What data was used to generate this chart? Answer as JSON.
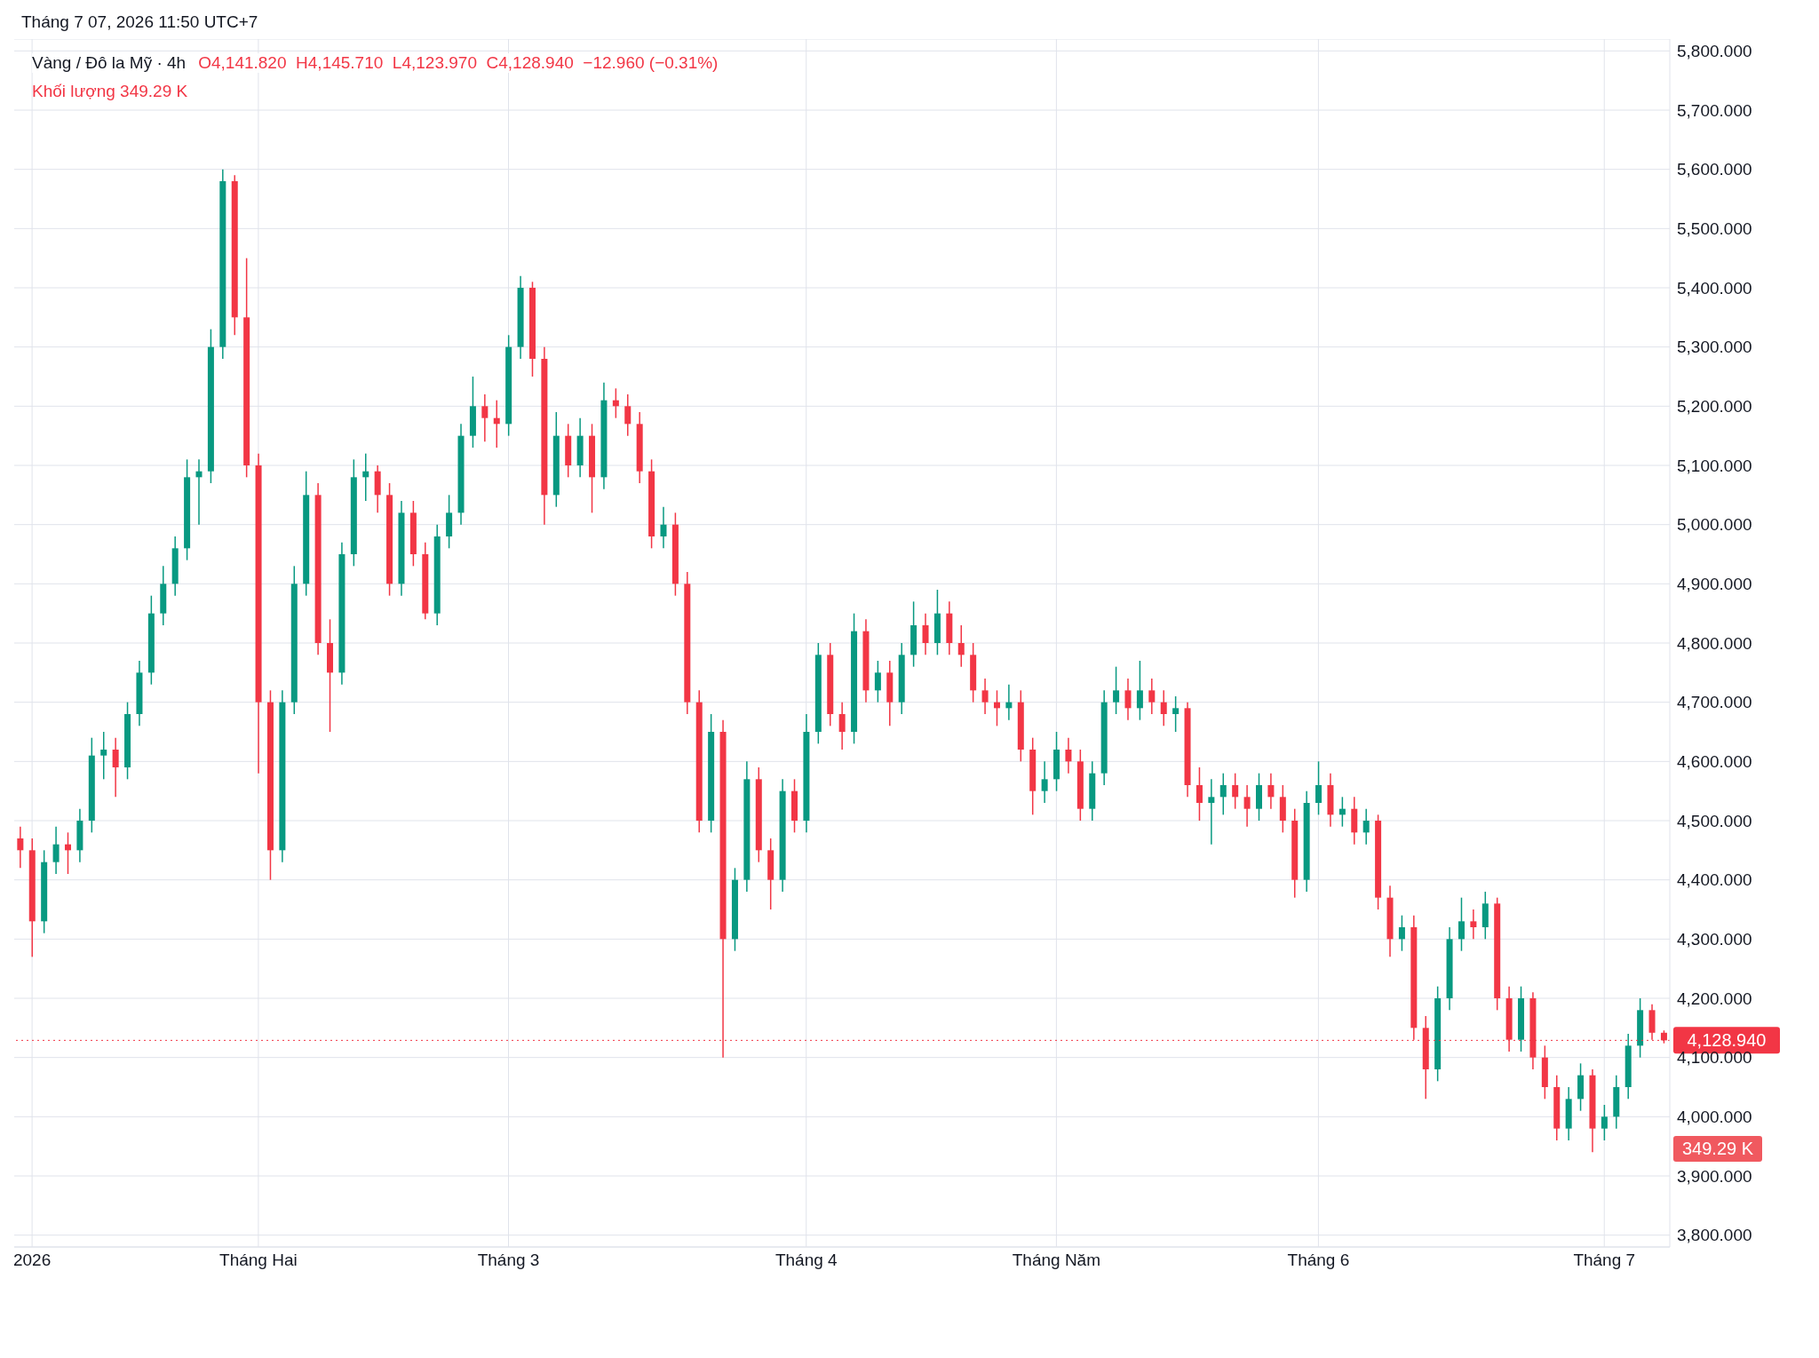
{
  "chart_data": {
    "type": "candlestick",
    "title": "Vàng / Đô la Mỹ · 4h",
    "annotations": [
      "Tháng 7 07, 2026 11:50 UTC+7",
      "O4,141.820  H4,145.710  L4,123.970  C4,128.940  −12.960 (−0.31%)",
      "Khối lượng 349.29 K",
      "349.29 K"
    ],
    "categories": [
      null,
      "2026",
      null,
      null,
      null,
      null,
      null,
      null,
      null,
      null,
      null,
      null,
      null,
      null,
      null,
      null,
      null,
      null,
      null,
      null,
      "Tháng Hai",
      null,
      null,
      null,
      null,
      null,
      null,
      null,
      null,
      null,
      null,
      null,
      null,
      null,
      null,
      null,
      null,
      null,
      null,
      null,
      null,
      "Tháng 3",
      null,
      null,
      null,
      null,
      null,
      null,
      null,
      null,
      null,
      null,
      null,
      null,
      null,
      null,
      null,
      null,
      null,
      null,
      null,
      null,
      null,
      null,
      null,
      null,
      "Tháng 4",
      null,
      null,
      null,
      null,
      null,
      null,
      null,
      null,
      null,
      null,
      null,
      null,
      null,
      null,
      null,
      null,
      null,
      null,
      null,
      null,
      "Tháng Năm",
      null,
      null,
      null,
      null,
      null,
      null,
      null,
      null,
      null,
      null,
      null,
      null,
      null,
      null,
      null,
      null,
      null,
      null,
      null,
      null,
      null,
      "Tháng 6",
      null,
      null,
      null,
      null,
      null,
      null,
      null,
      null,
      null,
      null,
      null,
      null,
      null,
      null,
      null,
      null,
      null,
      null,
      null,
      null,
      null,
      null,
      null,
      "Tháng 7",
      null,
      null,
      null,
      null,
      null
    ],
    "ohlc": [
      [
        4470,
        4490,
        4420,
        4450
      ],
      [
        4450,
        4470,
        4270,
        4330
      ],
      [
        4330,
        4450,
        4310,
        4430
      ],
      [
        4430,
        4490,
        4410,
        4460
      ],
      [
        4460,
        4480,
        4410,
        4450
      ],
      [
        4450,
        4520,
        4430,
        4500
      ],
      [
        4500,
        4640,
        4480,
        4610
      ],
      [
        4610,
        4650,
        4570,
        4620
      ],
      [
        4620,
        4640,
        4540,
        4590
      ],
      [
        4590,
        4700,
        4570,
        4680
      ],
      [
        4680,
        4770,
        4660,
        4750
      ],
      [
        4750,
        4880,
        4730,
        4850
      ],
      [
        4850,
        4930,
        4830,
        4900
      ],
      [
        4900,
        4980,
        4880,
        4960
      ],
      [
        4960,
        5110,
        4940,
        5080
      ],
      [
        5080,
        5110,
        5000,
        5090
      ],
      [
        5090,
        5330,
        5070,
        5300
      ],
      [
        5300,
        5600,
        5280,
        5580
      ],
      [
        5580,
        5590,
        5320,
        5350
      ],
      [
        5350,
        5450,
        5080,
        5100
      ],
      [
        5100,
        5120,
        4580,
        4700
      ],
      [
        4700,
        4720,
        4400,
        4450
      ],
      [
        4450,
        4720,
        4430,
        4700
      ],
      [
        4700,
        4930,
        4680,
        4900
      ],
      [
        4900,
        5090,
        4880,
        5050
      ],
      [
        5050,
        5070,
        4780,
        4800
      ],
      [
        4800,
        4840,
        4650,
        4750
      ],
      [
        4750,
        4970,
        4730,
        4950
      ],
      [
        4950,
        5110,
        4930,
        5080
      ],
      [
        5080,
        5120,
        5040,
        5090
      ],
      [
        5090,
        5100,
        5020,
        5050
      ],
      [
        5050,
        5070,
        4880,
        4900
      ],
      [
        4900,
        5040,
        4880,
        5020
      ],
      [
        5020,
        5040,
        4930,
        4950
      ],
      [
        4950,
        4970,
        4840,
        4850
      ],
      [
        4850,
        5000,
        4830,
        4980
      ],
      [
        4980,
        5050,
        4960,
        5020
      ],
      [
        5020,
        5170,
        5000,
        5150
      ],
      [
        5150,
        5250,
        5130,
        5200
      ],
      [
        5200,
        5220,
        5140,
        5180
      ],
      [
        5180,
        5210,
        5130,
        5170
      ],
      [
        5170,
        5320,
        5150,
        5300
      ],
      [
        5300,
        5420,
        5280,
        5400
      ],
      [
        5400,
        5410,
        5250,
        5280
      ],
      [
        5280,
        5300,
        5000,
        5050
      ],
      [
        5050,
        5190,
        5030,
        5150
      ],
      [
        5150,
        5170,
        5080,
        5100
      ],
      [
        5100,
        5180,
        5080,
        5150
      ],
      [
        5150,
        5170,
        5020,
        5080
      ],
      [
        5080,
        5240,
        5060,
        5210
      ],
      [
        5210,
        5230,
        5180,
        5200
      ],
      [
        5200,
        5220,
        5150,
        5170
      ],
      [
        5170,
        5190,
        5070,
        5090
      ],
      [
        5090,
        5110,
        4960,
        4980
      ],
      [
        4980,
        5030,
        4960,
        5000
      ],
      [
        5000,
        5020,
        4880,
        4900
      ],
      [
        4900,
        4920,
        4680,
        4700
      ],
      [
        4700,
        4720,
        4480,
        4500
      ],
      [
        4500,
        4680,
        4480,
        4650
      ],
      [
        4650,
        4670,
        4100,
        4300
      ],
      [
        4300,
        4420,
        4280,
        4400
      ],
      [
        4400,
        4600,
        4380,
        4570
      ],
      [
        4570,
        4590,
        4430,
        4450
      ],
      [
        4450,
        4470,
        4350,
        4400
      ],
      [
        4400,
        4570,
        4380,
        4550
      ],
      [
        4550,
        4570,
        4480,
        4500
      ],
      [
        4500,
        4680,
        4480,
        4650
      ],
      [
        4650,
        4800,
        4630,
        4780
      ],
      [
        4780,
        4800,
        4660,
        4680
      ],
      [
        4680,
        4700,
        4620,
        4650
      ],
      [
        4650,
        4850,
        4630,
        4820
      ],
      [
        4820,
        4840,
        4700,
        4720
      ],
      [
        4720,
        4770,
        4700,
        4750
      ],
      [
        4750,
        4770,
        4660,
        4700
      ],
      [
        4700,
        4800,
        4680,
        4780
      ],
      [
        4780,
        4870,
        4760,
        4830
      ],
      [
        4830,
        4850,
        4780,
        4800
      ],
      [
        4800,
        4890,
        4780,
        4850
      ],
      [
        4850,
        4870,
        4780,
        4800
      ],
      [
        4800,
        4830,
        4760,
        4780
      ],
      [
        4780,
        4800,
        4700,
        4720
      ],
      [
        4720,
        4740,
        4680,
        4700
      ],
      [
        4700,
        4720,
        4660,
        4690
      ],
      [
        4690,
        4730,
        4670,
        4700
      ],
      [
        4700,
        4720,
        4600,
        4620
      ],
      [
        4620,
        4640,
        4510,
        4550
      ],
      [
        4550,
        4600,
        4530,
        4570
      ],
      [
        4570,
        4650,
        4550,
        4620
      ],
      [
        4620,
        4640,
        4580,
        4600
      ],
      [
        4600,
        4620,
        4500,
        4520
      ],
      [
        4520,
        4600,
        4500,
        4580
      ],
      [
        4580,
        4720,
        4560,
        4700
      ],
      [
        4700,
        4760,
        4680,
        4720
      ],
      [
        4720,
        4740,
        4670,
        4690
      ],
      [
        4690,
        4770,
        4670,
        4720
      ],
      [
        4720,
        4740,
        4680,
        4700
      ],
      [
        4700,
        4720,
        4660,
        4680
      ],
      [
        4680,
        4710,
        4650,
        4690
      ],
      [
        4690,
        4700,
        4540,
        4560
      ],
      [
        4560,
        4590,
        4500,
        4530
      ],
      [
        4530,
        4570,
        4460,
        4540
      ],
      [
        4540,
        4580,
        4510,
        4560
      ],
      [
        4560,
        4580,
        4520,
        4540
      ],
      [
        4540,
        4560,
        4490,
        4520
      ],
      [
        4520,
        4580,
        4500,
        4560
      ],
      [
        4560,
        4580,
        4520,
        4540
      ],
      [
        4540,
        4560,
        4480,
        4500
      ],
      [
        4500,
        4520,
        4370,
        4400
      ],
      [
        4400,
        4550,
        4380,
        4530
      ],
      [
        4530,
        4600,
        4510,
        4560
      ],
      [
        4560,
        4580,
        4490,
        4510
      ],
      [
        4510,
        4540,
        4490,
        4520
      ],
      [
        4520,
        4540,
        4460,
        4480
      ],
      [
        4480,
        4520,
        4460,
        4500
      ],
      [
        4500,
        4510,
        4350,
        4370
      ],
      [
        4370,
        4390,
        4270,
        4300
      ],
      [
        4300,
        4340,
        4280,
        4320
      ],
      [
        4320,
        4340,
        4130,
        4150
      ],
      [
        4150,
        4170,
        4030,
        4080
      ],
      [
        4080,
        4220,
        4060,
        4200
      ],
      [
        4200,
        4320,
        4180,
        4300
      ],
      [
        4300,
        4370,
        4280,
        4330
      ],
      [
        4330,
        4350,
        4300,
        4320
      ],
      [
        4320,
        4380,
        4300,
        4360
      ],
      [
        4360,
        4370,
        4180,
        4200
      ],
      [
        4200,
        4220,
        4110,
        4130
      ],
      [
        4130,
        4220,
        4110,
        4200
      ],
      [
        4200,
        4210,
        4080,
        4100
      ],
      [
        4100,
        4120,
        4030,
        4050
      ],
      [
        4050,
        4070,
        3960,
        3980
      ],
      [
        3980,
        4050,
        3960,
        4030
      ],
      [
        4030,
        4090,
        4010,
        4070
      ],
      [
        4070,
        4080,
        3940,
        3980
      ],
      [
        3980,
        4020,
        3960,
        4000
      ],
      [
        4000,
        4070,
        3980,
        4050
      ],
      [
        4050,
        4140,
        4030,
        4120
      ],
      [
        4120,
        4200,
        4100,
        4180
      ],
      [
        4180,
        4190,
        4130,
        4141.82
      ],
      [
        4141.82,
        4145.71,
        4123.97,
        4128.94
      ]
    ],
    "colors": [
      "#f23645",
      "#f23645",
      "#089981",
      "#089981",
      "#f23645",
      "#089981",
      "#089981",
      "#089981",
      "#f23645",
      "#089981",
      "#089981",
      "#089981",
      "#089981",
      "#089981",
      "#089981",
      "#089981",
      "#089981",
      "#089981",
      "#f23645",
      "#f23645",
      "#f23645",
      "#f23645",
      "#089981",
      "#089981",
      "#089981",
      "#f23645",
      "#f23645",
      "#089981",
      "#089981",
      "#089981",
      "#f23645",
      "#f23645",
      "#089981",
      "#f23645",
      "#f23645",
      "#089981",
      "#089981",
      "#089981",
      "#089981",
      "#f23645",
      "#f23645",
      "#089981",
      "#089981",
      "#f23645",
      "#f23645",
      "#089981",
      "#f23645",
      "#089981",
      "#f23645",
      "#089981",
      "#f23645",
      "#f23645",
      "#f23645",
      "#f23645",
      "#089981",
      "#f23645",
      "#f23645",
      "#f23645",
      "#089981",
      "#f23645",
      "#089981",
      "#089981",
      "#f23645",
      "#f23645",
      "#089981",
      "#f23645",
      "#089981",
      "#089981",
      "#f23645",
      "#f23645",
      "#089981",
      "#f23645",
      "#089981",
      "#f23645",
      "#089981",
      "#089981",
      "#f23645",
      "#089981",
      "#f23645",
      "#f23645",
      "#f23645",
      "#f23645",
      "#f23645",
      "#089981",
      "#f23645",
      "#f23645",
      "#089981",
      "#089981",
      "#f23645",
      "#f23645",
      "#089981",
      "#089981",
      "#089981",
      "#f23645",
      "#089981",
      "#f23645",
      "#f23645",
      "#089981",
      "#f23645",
      "#f23645",
      "#089981",
      "#089981",
      "#f23645",
      "#f23645",
      "#089981",
      "#f23645",
      "#f23645",
      "#f23645",
      "#089981",
      "#089981",
      "#f23645",
      "#089981",
      "#f23645",
      "#089981",
      "#f23645",
      "#f23645",
      "#089981",
      "#f23645",
      "#f23645",
      "#089981",
      "#089981",
      "#089981",
      "#f23645",
      "#089981",
      "#f23645",
      "#f23645",
      "#089981",
      "#f23645",
      "#f23645",
      "#f23645",
      "#089981",
      "#089981",
      "#f23645",
      "#089981",
      "#089981",
      "#089981",
      "#089981",
      "#f23645",
      "#f23645"
    ],
    "ylim": [
      3780,
      5820
    ],
    "yticks": [
      {
        "value": 3800,
        "label": "3,800.000"
      },
      {
        "value": 3900,
        "label": "3,900.000"
      },
      {
        "value": 4000,
        "label": "4,000.000"
      },
      {
        "value": 4100,
        "label": "4,100.000"
      },
      {
        "value": 4200,
        "label": "4,200.000"
      },
      {
        "value": 4300,
        "label": "4,300.000"
      },
      {
        "value": 4400,
        "label": "4,400.000"
      },
      {
        "value": 4500,
        "label": "4,500.000"
      },
      {
        "value": 4600,
        "label": "4,600.000"
      },
      {
        "value": 4700,
        "label": "4,700.000"
      },
      {
        "value": 4800,
        "label": "4,800.000"
      },
      {
        "value": 4900,
        "label": "4,900.000"
      },
      {
        "value": 5000,
        "label": "5,000.000"
      },
      {
        "value": 5100,
        "label": "5,100.000"
      },
      {
        "value": 5200,
        "label": "5,200.000"
      },
      {
        "value": 5300,
        "label": "5,300.000"
      },
      {
        "value": 5400,
        "label": "5,400.000"
      },
      {
        "value": 5500,
        "label": "5,500.000"
      },
      {
        "value": 5600,
        "label": "5,600.000"
      },
      {
        "value": 5700,
        "label": "5,700.000"
      },
      {
        "value": 5800,
        "label": "5,800.000"
      }
    ],
    "grid": true,
    "ref_lines": [
      {
        "axis": "y",
        "value": 4128.94,
        "label": "4,128.940",
        "color": "#f23645",
        "line_style": "dotted"
      }
    ]
  }
}
